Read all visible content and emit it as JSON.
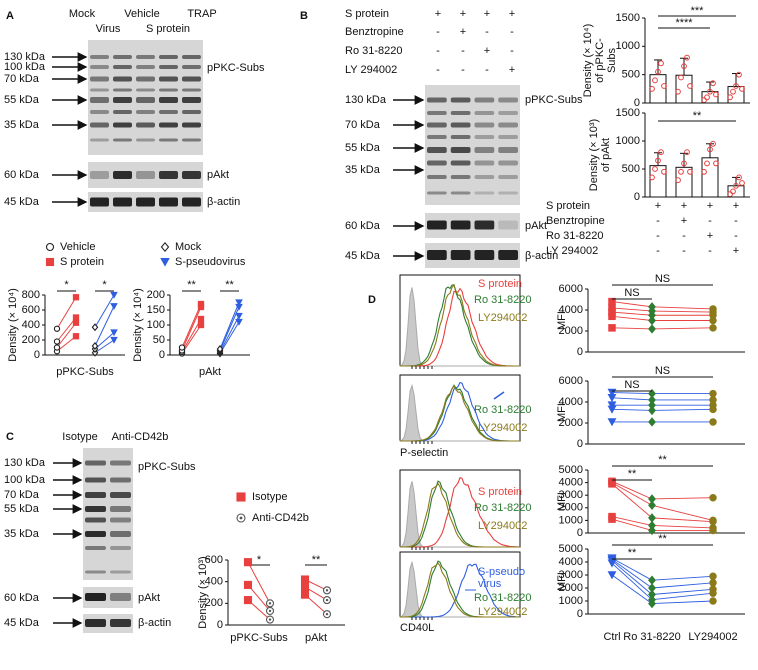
{
  "panel_a": {
    "label": "A",
    "header": [
      "Mock",
      "Vehicle",
      "TRAP",
      "Virus",
      "S protein"
    ],
    "markers": [
      "130 kDa",
      "100 kDa",
      "70 kDa",
      "55 kDa",
      "35 kDa"
    ],
    "bands": [
      "pPKC-Subs",
      "pAkt",
      "β-actin"
    ],
    "band_markers": [
      "60 kDa",
      "45 kDa"
    ],
    "groups": [
      {
        "name": "Vehicle",
        "color": "#222222",
        "marker": "circle-open"
      },
      {
        "name": "S protein",
        "color": "#e8403f",
        "marker": "square"
      },
      {
        "name": "Mock",
        "color": "#222222",
        "marker": "diamond-open"
      },
      {
        "name": "S-pseudovirus",
        "color": "#2f5fe0",
        "marker": "triangle-down"
      }
    ],
    "charts": [
      {
        "ylabel": "Density (× 10⁴)",
        "xlabel": "pPKC-Subs",
        "ylim": [
          0,
          800
        ],
        "yticks": [
          0,
          200,
          400,
          600,
          800
        ],
        "significance": [
          "*",
          "*"
        ],
        "data": [
          [
            50,
            100,
            180,
            350
          ],
          [
            250,
            430,
            500,
            770
          ],
          [
            30,
            80,
            120,
            370
          ],
          [
            200,
            300,
            650,
            800
          ]
        ]
      },
      {
        "ylabel": "Density (× 10⁴)",
        "xlabel": "pAkt",
        "ylim": [
          0,
          200
        ],
        "yticks": [
          0,
          50,
          100,
          150,
          200
        ],
        "significance": [
          "**",
          "**"
        ],
        "data": [
          [
            5,
            10,
            15,
            25
          ],
          [
            100,
            120,
            160,
            170
          ],
          [
            5,
            10,
            15,
            20
          ],
          [
            110,
            130,
            160,
            175
          ]
        ]
      }
    ]
  },
  "panel_b": {
    "label": "B",
    "conditions": [
      {
        "name": "S protein",
        "signs": [
          "+",
          "+",
          "+",
          "+"
        ]
      },
      {
        "name": "Benztropine",
        "signs": [
          "-",
          "+",
          "-",
          "-"
        ]
      },
      {
        "name": "Ro 31-8220",
        "signs": [
          "-",
          "-",
          "+",
          "-"
        ]
      },
      {
        "name": "LY 294002",
        "signs": [
          "-",
          "-",
          "-",
          "+"
        ]
      }
    ],
    "markers": [
      "130 kDa",
      "70 kDa",
      "55 kDa",
      "35 kDa"
    ],
    "bands": [
      "pPKC-Subs",
      "pAkt",
      "β-actin"
    ],
    "band_markers": [
      "60 kDa",
      "45 kDa"
    ],
    "charts": [
      {
        "ylabel": [
          "Density (× 10⁴)",
          "of pPKC-",
          "Subs"
        ],
        "ylim": [
          0,
          1500
        ],
        "yticks": [
          0,
          500,
          1000,
          1500
        ],
        "significance": [
          "***",
          "****"
        ],
        "color": "#e8403f",
        "values": [
          500,
          490,
          200,
          290
        ],
        "errors": [
          260,
          300,
          170,
          230
        ],
        "points": [
          [
            250,
            400,
            550,
            700,
            300
          ],
          [
            200,
            450,
            650,
            800,
            300
          ],
          [
            50,
            100,
            200,
            350,
            150
          ],
          [
            100,
            200,
            300,
            500,
            250
          ]
        ]
      },
      {
        "ylabel": [
          "Density (× 10³)",
          "of pAkt"
        ],
        "ylim": [
          0,
          1500
        ],
        "yticks": [
          0,
          500,
          1000,
          1500
        ],
        "significance": [
          "**"
        ],
        "color": "#e8403f",
        "values": [
          560,
          530,
          700,
          200
        ],
        "errors": [
          230,
          250,
          250,
          150
        ],
        "points": [
          [
            350,
            500,
            650,
            800,
            450
          ],
          [
            300,
            450,
            600,
            800,
            450
          ],
          [
            450,
            600,
            850,
            950,
            600
          ],
          [
            50,
            100,
            200,
            350,
            250
          ]
        ]
      }
    ]
  },
  "panel_c": {
    "label": "C",
    "header": [
      "Isotype",
      "Anti-CD42b"
    ],
    "markers": [
      "130 kDa",
      "100 kDa",
      "70 kDa",
      "55 kDa",
      "35 kDa"
    ],
    "bands": [
      "pPKC-Subs",
      "pAkt",
      "β-actin"
    ],
    "band_markers": [
      "60 kDa",
      "45 kDa"
    ],
    "chart": {
      "ylabel": "Density (× 10³)",
      "ylim": [
        0,
        600
      ],
      "yticks": [
        0,
        200,
        400,
        600
      ],
      "categories": [
        "pPKC-Subs",
        "pAkt"
      ],
      "significance": [
        "*",
        "**"
      ],
      "groups": [
        {
          "name": "Isotype",
          "color": "#e8403f",
          "marker": "square",
          "values": [
            [
              580,
              370,
              230
            ],
            [
              420,
              350,
              280
            ]
          ]
        },
        {
          "name": "Anti-CD42b",
          "color": "#555555",
          "marker": "circle-dot",
          "values": [
            [
              200,
              130,
              50
            ],
            [
              320,
              230,
              100
            ]
          ]
        }
      ]
    }
  },
  "panel_d": {
    "label": "D",
    "histograms": [
      {
        "labels": [
          "S protein",
          "Ro 31-8220",
          "LY294002"
        ],
        "colors": [
          "#e8403f",
          "#2e7d32",
          "#8b7a1a"
        ]
      },
      {
        "labels": [
          "Ro 31-8220",
          "LY294002"
        ],
        "colors": [
          "#2e7d32",
          "#8b7a1a"
        ]
      },
      {
        "labels": [
          "S protein",
          "Ro 31-8220",
          "LY294002"
        ],
        "colors": [
          "#e8403f",
          "#2e7d32",
          "#8b7a1a"
        ]
      },
      {
        "labels": [
          "S-pseudo",
          "virus",
          "Ro 31-8220",
          "LY294002"
        ],
        "colors": [
          "#2f5fe0",
          "#2f5fe0",
          "#2e7d32",
          "#8b7a1a"
        ]
      }
    ],
    "histogram_xlabels": [
      "P-selectin",
      "CD40L"
    ],
    "ylabel": "MFI",
    "categories": [
      "Ctrl",
      "Ro 31-8220",
      "LY294002"
    ],
    "charts": [
      {
        "ylim": [
          0,
          6000
        ],
        "yticks": [
          0,
          2000,
          4000,
          6000
        ],
        "significance": [
          "NS",
          "NS"
        ],
        "colors": [
          "#e8403f",
          "#2e7d32",
          "#8b7a1a"
        ],
        "markers": [
          "square",
          "diamond",
          "circle"
        ],
        "values": [
          [
            4800,
            4200,
            3800,
            3400,
            2300
          ],
          [
            4300,
            3900,
            3500,
            3000,
            2200
          ],
          [
            4100,
            3800,
            3500,
            3000,
            2300
          ]
        ]
      },
      {
        "ylim": [
          0,
          6000
        ],
        "yticks": [
          0,
          2000,
          4000,
          6000
        ],
        "significance": [
          "NS",
          "NS"
        ],
        "colors": [
          "#2f5fe0",
          "#2e7d32",
          "#8b7a1a"
        ],
        "markers": [
          "triangle-down",
          "diamond",
          "circle"
        ],
        "values": [
          [
            4900,
            4400,
            3700,
            3300,
            2100
          ],
          [
            4800,
            4200,
            3700,
            3200,
            2100
          ],
          [
            4800,
            4200,
            3700,
            3300,
            2100
          ]
        ]
      },
      {
        "ylim": [
          0,
          5000
        ],
        "yticks": [
          0,
          1000,
          2000,
          3000,
          4000,
          5000
        ],
        "significance": [
          "**",
          "**"
        ],
        "colors": [
          "#e8403f",
          "#2e7d32",
          "#8b7a1a"
        ],
        "markers": [
          "square",
          "diamond",
          "circle"
        ],
        "values": [
          [
            4100,
            4000,
            3900,
            1300,
            1100
          ],
          [
            2700,
            2200,
            1200,
            600,
            200
          ],
          [
            2800,
            1000,
            900,
            400,
            200
          ]
        ]
      },
      {
        "ylim": [
          0,
          5000
        ],
        "yticks": [
          0,
          1000,
          2000,
          3000,
          4000,
          5000
        ],
        "significance": [
          "**",
          "**"
        ],
        "colors": [
          "#2f5fe0",
          "#2e7d32",
          "#8b7a1a"
        ],
        "markers": [
          "triangle-down",
          "diamond",
          "circle"
        ],
        "values": [
          [
            4300,
            4200,
            4100,
            3900,
            3000
          ],
          [
            2600,
            2000,
            1500,
            1100,
            800
          ],
          [
            2900,
            2400,
            1900,
            1600,
            1000
          ]
        ]
      }
    ]
  }
}
